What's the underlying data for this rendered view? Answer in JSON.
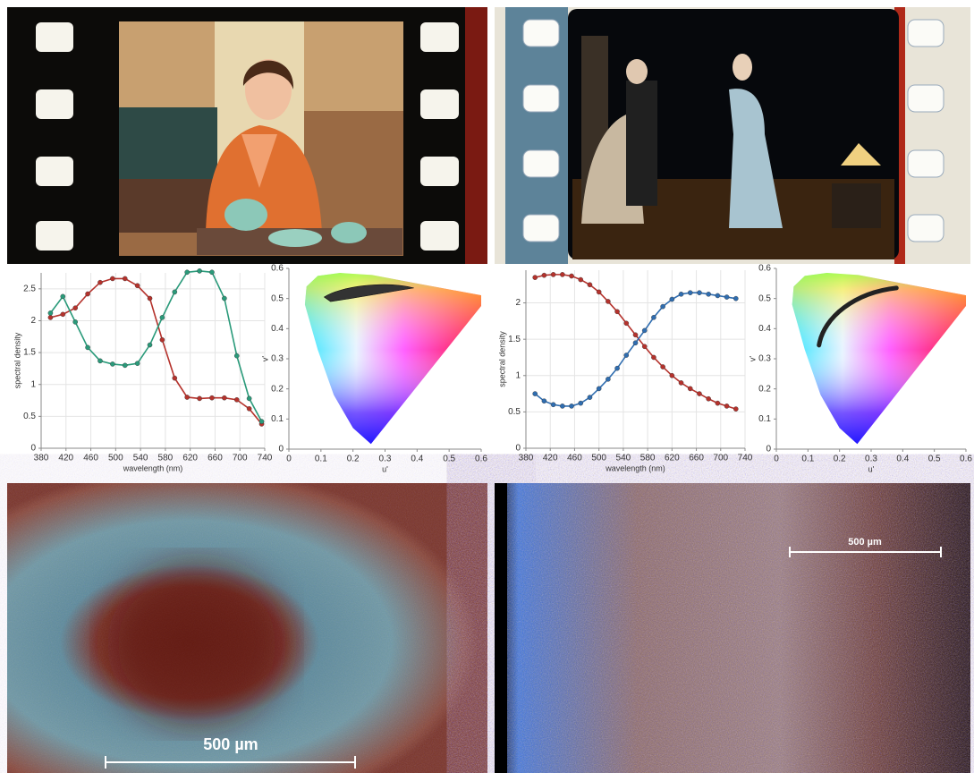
{
  "chart_data": [
    {
      "type": "line",
      "xlabel": "wavelength (nm)",
      "ylabel": "spectral density",
      "x": [
        395,
        415,
        435,
        455,
        475,
        495,
        515,
        535,
        555,
        575,
        595,
        615,
        635,
        655,
        675,
        695,
        715,
        735
      ],
      "series": [
        {
          "color": "#b5322c",
          "values": [
            2.05,
            2.1,
            2.2,
            2.42,
            2.6,
            2.66,
            2.66,
            2.55,
            2.35,
            1.7,
            1.1,
            0.8,
            0.78,
            0.79,
            0.79,
            0.76,
            0.62,
            0.38
          ]
        },
        {
          "color": "#2a9a7a",
          "values": [
            2.12,
            2.38,
            1.98,
            1.58,
            1.37,
            1.32,
            1.3,
            1.33,
            1.62,
            2.05,
            2.45,
            2.76,
            2.78,
            2.76,
            2.35,
            1.45,
            0.78,
            0.42
          ]
        }
      ],
      "xlim": [
        380,
        740
      ],
      "xticks": [
        380,
        420,
        460,
        500,
        540,
        580,
        620,
        660,
        700,
        740
      ],
      "ylim": [
        0,
        2.75
      ],
      "yticks": [
        0,
        0.5,
        1,
        1.5,
        2,
        2.5
      ],
      "grid": true
    },
    {
      "type": "chromaticity",
      "xlabel": "u'",
      "ylabel": "v'",
      "xlim": [
        0,
        0.6
      ],
      "xticks": [
        0,
        0.1,
        0.2,
        0.3,
        0.4,
        0.5,
        0.6
      ],
      "ylim": [
        0,
        0.6
      ],
      "yticks": [
        0,
        0.1,
        0.2,
        0.3,
        0.4,
        0.5,
        0.6
      ]
    },
    {
      "type": "line",
      "xlabel": "wavelength (nm)",
      "ylabel": "spectral density",
      "x": [
        395,
        410,
        425,
        440,
        455,
        470,
        485,
        500,
        515,
        530,
        545,
        560,
        575,
        590,
        605,
        620,
        635,
        650,
        665,
        680,
        695,
        710,
        725
      ],
      "series": [
        {
          "color": "#b5322c",
          "values": [
            2.35,
            2.38,
            2.39,
            2.39,
            2.37,
            2.32,
            2.25,
            2.15,
            2.02,
            1.88,
            1.72,
            1.56,
            1.4,
            1.25,
            1.12,
            1.0,
            0.9,
            0.82,
            0.75,
            0.68,
            0.62,
            0.58,
            0.54
          ]
        },
        {
          "color": "#2f6db0",
          "values": [
            0.75,
            0.65,
            0.6,
            0.58,
            0.58,
            0.62,
            0.7,
            0.82,
            0.95,
            1.1,
            1.28,
            1.45,
            1.62,
            1.8,
            1.95,
            2.05,
            2.12,
            2.14,
            2.14,
            2.12,
            2.1,
            2.08,
            2.06
          ]
        }
      ],
      "xlim": [
        380,
        740
      ],
      "xticks": [
        380,
        420,
        460,
        500,
        540,
        580,
        620,
        660,
        700,
        740
      ],
      "ylim": [
        0,
        2.45
      ],
      "yticks": [
        0,
        0.5,
        1,
        1.5,
        2
      ],
      "grid": true
    },
    {
      "type": "chromaticity",
      "xlabel": "u'",
      "ylabel": "v'",
      "xlim": [
        0,
        0.6
      ],
      "xticks": [
        0,
        0.1,
        0.2,
        0.3,
        0.4,
        0.5,
        0.6
      ],
      "ylim": [
        0,
        0.6
      ],
      "yticks": [
        0,
        0.1,
        0.2,
        0.3,
        0.4,
        0.5,
        0.6
      ]
    }
  ],
  "micrographs": [
    {
      "scale_label": "500 µm"
    },
    {
      "scale_label": "500 µm"
    }
  ]
}
